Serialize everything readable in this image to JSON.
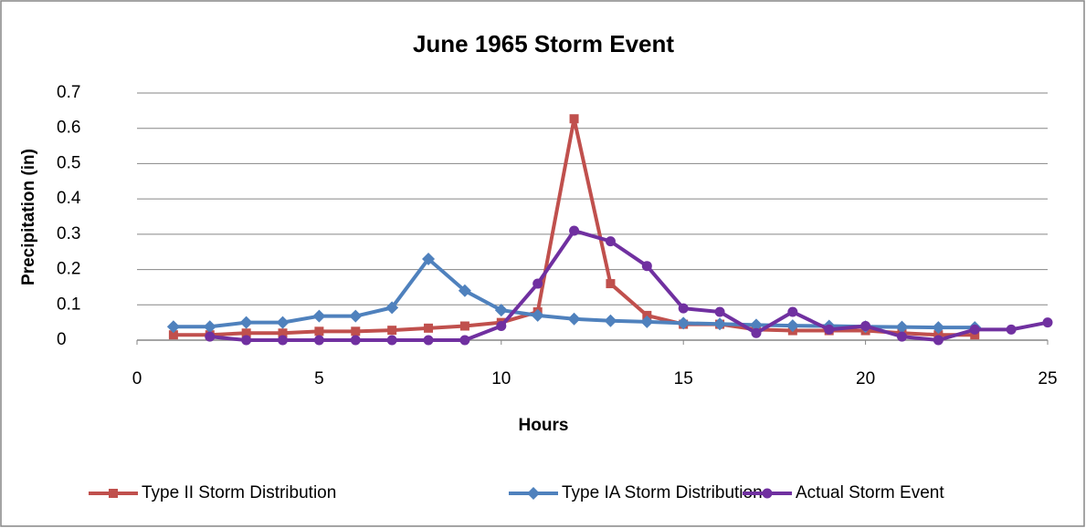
{
  "chart_data": {
    "type": "line",
    "title": "June 1965 Storm Event",
    "x_label": "Hours",
    "y_label": "Precipitation (in)",
    "xlim": [
      0,
      25
    ],
    "xticks": [
      0,
      5,
      10,
      15,
      20,
      25
    ],
    "ylim": [
      0,
      0.7
    ],
    "yticks": [
      0,
      0.1,
      0.2,
      0.3,
      0.4,
      0.5,
      0.6,
      0.7
    ],
    "grid": true,
    "legend": "bottom",
    "series": [
      {
        "name": "Type II Storm Distribution",
        "color": "#c0504d",
        "marker": "square",
        "x": [
          1,
          2,
          3,
          4,
          5,
          6,
          7,
          8,
          9,
          10,
          11,
          12,
          13,
          14,
          15,
          16,
          17,
          18,
          19,
          20,
          21,
          22,
          23
        ],
        "values": [
          0.015,
          0.015,
          0.02,
          0.02,
          0.025,
          0.025,
          0.028,
          0.034,
          0.04,
          0.05,
          0.08,
          0.627,
          0.16,
          0.07,
          0.045,
          0.045,
          0.03,
          0.027,
          0.027,
          0.027,
          0.02,
          0.015,
          0.015
        ]
      },
      {
        "name": "Type IA Storm Distribution",
        "color": "#4f81bd",
        "marker": "diamond",
        "x": [
          1,
          2,
          3,
          4,
          5,
          6,
          7,
          8,
          9,
          10,
          11,
          12,
          13,
          14,
          15,
          16,
          17,
          18,
          19,
          20,
          21,
          22,
          23
        ],
        "values": [
          0.038,
          0.038,
          0.05,
          0.05,
          0.068,
          0.068,
          0.092,
          0.23,
          0.14,
          0.085,
          0.07,
          0.06,
          0.055,
          0.052,
          0.048,
          0.046,
          0.043,
          0.041,
          0.04,
          0.038,
          0.037,
          0.036,
          0.036
        ]
      },
      {
        "name": "Actual Storm Event",
        "color": "#7030a0",
        "marker": "circle",
        "x": [
          2,
          3,
          4,
          5,
          6,
          7,
          8,
          9,
          10,
          11,
          12,
          13,
          14,
          15,
          16,
          17,
          18,
          19,
          20,
          21,
          22,
          23,
          24,
          25
        ],
        "values": [
          0.01,
          0,
          0,
          0,
          0,
          0,
          0,
          0,
          0.04,
          0.16,
          0.31,
          0.28,
          0.21,
          0.09,
          0.08,
          0.02,
          0.08,
          0.03,
          0.04,
          0.01,
          0,
          0.03,
          0.03,
          0.05
        ]
      }
    ]
  }
}
